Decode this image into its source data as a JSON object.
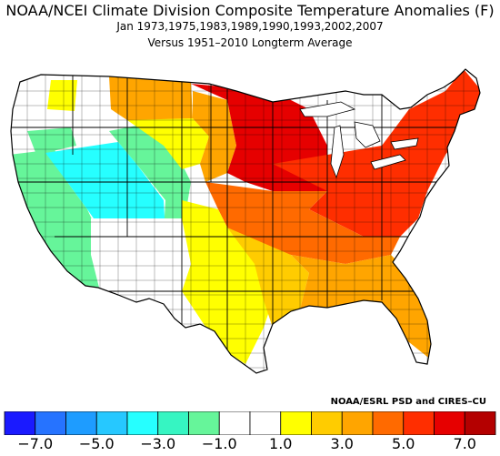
{
  "header": {
    "title": "NOAA/NCEI Climate Division Composite Temperature Anomalies (F)",
    "subtitle": "Jan   1973,1975,1983,1989,1990,1993,2002,2007",
    "subtitle2": "Versus 1951–2010 Longterm Average"
  },
  "credit": "NOAA/ESRL PSD and CIRES–CU",
  "colorbar": {
    "colors": [
      "#1a1aff",
      "#2673ff",
      "#1e9cff",
      "#26c8ff",
      "#26ffff",
      "#36f5c2",
      "#66f59a",
      "#ffffff",
      "#ffffff",
      "#ffff00",
      "#ffcc00",
      "#ffa500",
      "#ff6a00",
      "#ff2e00",
      "#e60000",
      "#b40000"
    ],
    "tick_labels": [
      "−7.0",
      "−5.0",
      "−3.0",
      "−1.0",
      "1.0",
      "3.0",
      "5.0",
      "7.0"
    ]
  },
  "regions": [
    {
      "name": "pacific-northwest-coast",
      "color": "#ffffff"
    },
    {
      "name": "northern-rockies",
      "color": "#ffff00"
    },
    {
      "name": "great-basin",
      "color": "#26ffff"
    },
    {
      "name": "california",
      "color": "#66f59a"
    },
    {
      "name": "southwest",
      "color": "#ffffff"
    },
    {
      "name": "texas",
      "color": "#ffff00"
    },
    {
      "name": "upper-midwest",
      "color": "#e60000"
    },
    {
      "name": "northeast",
      "color": "#ff2e00"
    },
    {
      "name": "southeast",
      "color": "#ffa500"
    }
  ]
}
